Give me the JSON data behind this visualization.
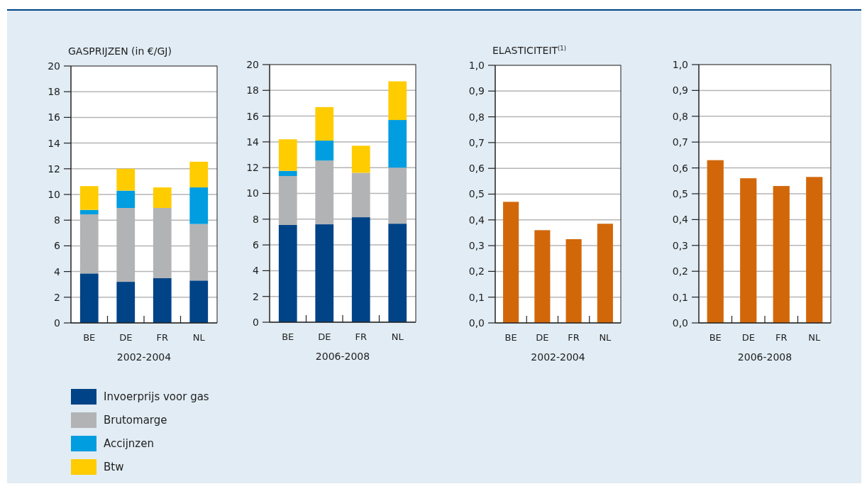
{
  "chart_data": [
    {
      "type": "bar",
      "title": "GASPRIJZEN (in €/GJ)",
      "xlabel": "2002-2004",
      "categories": [
        "BE",
        "DE",
        "FR",
        "NL"
      ],
      "stacked": true,
      "legend": "bottom",
      "grid": "y",
      "ylim": [
        0,
        20
      ],
      "yticks": [
        0,
        2,
        4,
        6,
        8,
        10,
        12,
        14,
        16,
        18,
        20
      ],
      "series": [
        {
          "name": "Invoerprijs voor gas",
          "color": "#004387",
          "values": [
            3.85,
            3.2,
            3.5,
            3.3
          ]
        },
        {
          "name": "Brutomarge",
          "color": "#b2b3b5",
          "values": [
            4.6,
            5.75,
            5.45,
            4.4
          ]
        },
        {
          "name": "Accijnzen",
          "color": "#009de0",
          "values": [
            0.35,
            1.35,
            0,
            2.85
          ]
        },
        {
          "name": "Btw",
          "color": "#ffcc00",
          "values": [
            1.85,
            1.7,
            1.6,
            2.0
          ]
        }
      ]
    },
    {
      "type": "bar",
      "xlabel": "2006-2008",
      "categories": [
        "BE",
        "DE",
        "FR",
        "NL"
      ],
      "stacked": true,
      "grid": "y",
      "ylim": [
        0,
        20
      ],
      "yticks": [
        0,
        2,
        4,
        6,
        8,
        10,
        12,
        14,
        16,
        18,
        20
      ],
      "series": [
        {
          "color": "#004387",
          "values": [
            7.55,
            7.6,
            8.15,
            7.65
          ]
        },
        {
          "color": "#b2b3b5",
          "values": [
            3.8,
            4.95,
            3.45,
            4.35
          ]
        },
        {
          "color": "#009de0",
          "values": [
            0.4,
            1.55,
            0,
            3.7
          ]
        },
        {
          "color": "#ffcc00",
          "values": [
            2.45,
            2.6,
            2.1,
            3.0
          ]
        }
      ]
    },
    {
      "type": "bar",
      "title": "ELASTICITEIT$^{(1)}$",
      "xlabel": "2002-2004",
      "categories": [
        "BE",
        "DE",
        "FR",
        "NL"
      ],
      "grid": "y",
      "ylim": [
        0,
        1
      ],
      "yticks": [
        {
          "value": 0,
          "label": "0,0"
        },
        {
          "value": 0.1,
          "label": "0,1"
        },
        {
          "value": 0.2,
          "label": "0,2"
        },
        {
          "value": 0.3,
          "label": "0,3"
        },
        {
          "value": 0.4,
          "label": "0,4"
        },
        {
          "value": 0.5,
          "label": "0,5"
        },
        {
          "value": 0.6,
          "label": "0,6"
        },
        {
          "value": 0.7,
          "label": "0,7"
        },
        {
          "value": 0.8,
          "label": "0,8"
        },
        {
          "value": 0.9,
          "label": "0,9"
        },
        {
          "value": 1,
          "label": "1,0"
        }
      ],
      "series": [
        {
          "color": "#d2670a",
          "values": [
            0.47,
            0.36,
            0.325,
            0.385
          ]
        }
      ]
    },
    {
      "type": "bar",
      "xlabel": "2006-2008",
      "categories": [
        "BE",
        "DE",
        "FR",
        "NL"
      ],
      "grid": "y",
      "ylim": [
        0,
        1
      ],
      "yticks": [
        {
          "value": 0,
          "label": "0,0"
        },
        {
          "value": 0.1,
          "label": "0,1"
        },
        {
          "value": 0.2,
          "label": "0,2"
        },
        {
          "value": 0.3,
          "label": "0,3"
        },
        {
          "value": 0.4,
          "label": "0,4"
        },
        {
          "value": 0.5,
          "label": "0,5"
        },
        {
          "value": 0.6,
          "label": "0,6"
        },
        {
          "value": 0.7,
          "label": "0,7"
        },
        {
          "value": 0.8,
          "label": "0,8"
        },
        {
          "value": 0.9,
          "label": "0,9"
        },
        {
          "value": 1,
          "label": "1,0"
        }
      ],
      "series": [
        {
          "color": "#d2670a",
          "values": [
            0.63,
            0.56,
            0.53,
            0.565
          ]
        }
      ]
    }
  ]
}
